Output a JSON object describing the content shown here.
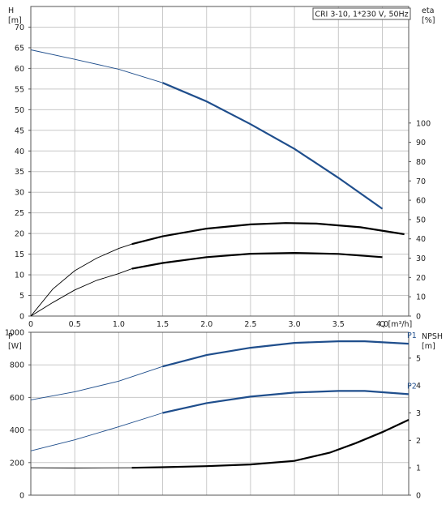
{
  "chart_data": [
    {
      "type": "line",
      "title": "CRI 3-10, 1*230 V, 50Hz",
      "xlabel": "Q [m³/h]",
      "x_axis": {
        "label": "Q [m³/h]",
        "ticks": [
          "0",
          "0.5",
          "1.0",
          "1.5",
          "2.0",
          "2.5",
          "3.0",
          "3.5",
          "4.0"
        ],
        "range": [
          0,
          4.3
        ],
        "grid": true
      },
      "y_left": {
        "label": "H",
        "unit": "[m]",
        "ticks": [
          "0",
          "5",
          "10",
          "15",
          "20",
          "25",
          "30",
          "35",
          "40",
          "45",
          "50",
          "55",
          "60",
          "65",
          "70"
        ],
        "range": [
          0,
          75
        ],
        "grid": true
      },
      "y_right": {
        "label": "eta",
        "unit": "[%]",
        "ticks": [
          "0",
          "10",
          "20",
          "30",
          "40",
          "50",
          "60",
          "70",
          "80",
          "90",
          "100"
        ],
        "range": [
          0,
          100
        ]
      },
      "series": [
        {
          "name": "H",
          "axis": "left",
          "color": "#1f4e8c",
          "operating_range": [
            1.15,
            4.65
          ],
          "points": [
            [
              0,
              64.5
            ],
            [
              0.5,
              62.2
            ],
            [
              1.0,
              59.8
            ],
            [
              1.5,
              56.5
            ],
            [
              2.0,
              52.0
            ],
            [
              2.5,
              46.5
            ],
            [
              3.0,
              40.5
            ],
            [
              3.5,
              33.5
            ],
            [
              4.0,
              26.0
            ],
            [
              4.35,
              21.5
            ],
            [
              4.65,
              15.0
            ]
          ]
        },
        {
          "name": "",
          "axis": "right",
          "color": "#000000",
          "operating_range": [
            1.15,
            4.65
          ],
          "points": [
            [
              0,
              0
            ],
            [
              0.25,
              14
            ],
            [
              0.5,
              23.5
            ],
            [
              0.75,
              30
            ],
            [
              1.0,
              35
            ],
            [
              1.15,
              37.3
            ],
            [
              1.5,
              41.3
            ],
            [
              2.0,
              45.3
            ],
            [
              2.5,
              47.5
            ],
            [
              2.9,
              48.2
            ],
            [
              3.25,
              47.9
            ],
            [
              3.75,
              46
            ],
            [
              4.25,
              42.4
            ],
            [
              4.65,
              38.2
            ]
          ]
        },
        {
          "name": "",
          "axis": "right",
          "color": "#000000",
          "operating_range": [
            1.15,
            4.65
          ],
          "points": [
            [
              0,
              0
            ],
            [
              0.25,
              7
            ],
            [
              0.5,
              13.5
            ],
            [
              0.75,
              18.5
            ],
            [
              1.0,
              22
            ],
            [
              1.15,
              24.5
            ],
            [
              1.5,
              27.5
            ],
            [
              2.0,
              30.5
            ],
            [
              2.5,
              32.3
            ],
            [
              3.0,
              32.7
            ],
            [
              3.5,
              32.2
            ],
            [
              4.0,
              30.5
            ],
            [
              4.35,
              28.5
            ],
            [
              4.65,
              25.5
            ]
          ]
        }
      ]
    },
    {
      "type": "line",
      "xlabel": "",
      "x_axis": {
        "range": [
          0,
          4.3
        ],
        "grid": true
      },
      "y_left": {
        "label": "P",
        "unit": "[W]",
        "ticks": [
          "0",
          "200",
          "400",
          "600",
          "800",
          "1000"
        ],
        "range": [
          0,
          1000
        ],
        "grid": true
      },
      "y_right": {
        "label": "NPSH",
        "unit": "[m]",
        "ticks": [
          "0",
          "1",
          "2",
          "3",
          "4",
          "5"
        ],
        "range": [
          0,
          5
        ]
      },
      "series": [
        {
          "name": "P1",
          "axis": "left",
          "color": "#1f4e8c",
          "operating_range": [
            1.15,
            4.65
          ],
          "points": [
            [
              0,
              585
            ],
            [
              0.5,
              635
            ],
            [
              1.0,
              700
            ],
            [
              1.5,
              790
            ],
            [
              2.0,
              860
            ],
            [
              2.5,
              905
            ],
            [
              3.0,
              935
            ],
            [
              3.5,
              945
            ],
            [
              3.8,
              945
            ],
            [
              4.3,
              930
            ]
          ]
        },
        {
          "name": "P2",
          "axis": "left",
          "color": "#1f4e8c",
          "operating_range": [
            1.15,
            4.65
          ],
          "points": [
            [
              0,
              272
            ],
            [
              0.5,
              340
            ],
            [
              1.0,
              420
            ],
            [
              1.5,
              505
            ],
            [
              2.0,
              565
            ],
            [
              2.5,
              605
            ],
            [
              3.0,
              630
            ],
            [
              3.5,
              640
            ],
            [
              3.8,
              640
            ],
            [
              4.3,
              620
            ]
          ]
        },
        {
          "name": "",
          "axis": "right",
          "color": "#000000",
          "operating_range": [
            1.15,
            4.65
          ],
          "points": [
            [
              0,
              1.0
            ],
            [
              0.5,
              0.99
            ],
            [
              1.15,
              1.0
            ],
            [
              1.5,
              1.02
            ],
            [
              2.0,
              1.06
            ],
            [
              2.5,
              1.12
            ],
            [
              3.0,
              1.25
            ],
            [
              3.4,
              1.55
            ],
            [
              3.7,
              1.9
            ],
            [
              4.0,
              2.3
            ],
            [
              4.3,
              2.75
            ]
          ]
        }
      ]
    }
  ]
}
